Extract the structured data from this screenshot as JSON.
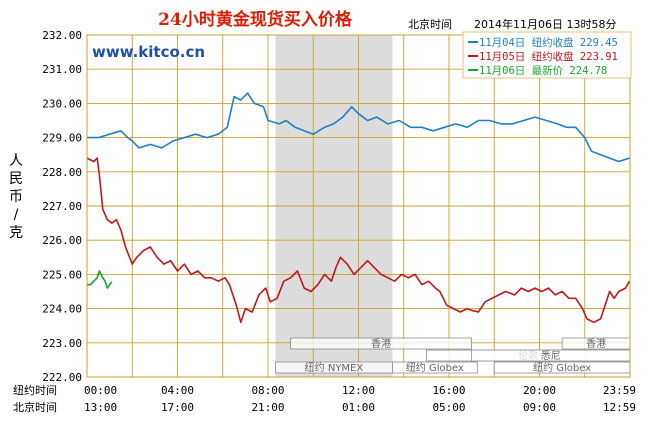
{
  "header": {
    "title": "24小时黄金现货买入价格",
    "beijing_label": "北京时间",
    "datetime": "2014年11月06日 13时58分",
    "brand": "www.kitco.cn",
    "ylabel": "人民币/克"
  },
  "legend": [
    {
      "text": "11月04日  纽约收盘 229.45",
      "color": "#1f7fc4"
    },
    {
      "text": "11月05日  纽约收盘 223.91",
      "color": "#c0171c"
    },
    {
      "text": "11月06日    最新价 224.78",
      "color": "#16a531"
    }
  ],
  "time_rows": {
    "ny_label": "纽约时间",
    "bj_label": "北京时间",
    "ny_ticks": [
      "00:00",
      "04:00",
      "08:00",
      "12:00",
      "16:00",
      "20:00",
      "23:59"
    ],
    "bj_ticks": [
      "13:00",
      "17:00",
      "21:00",
      "01:00",
      "05:00",
      "09:00",
      "12:59"
    ]
  },
  "markets": [
    {
      "name": "香港",
      "start": 9.0,
      "end": 17.0,
      "row": 0
    },
    {
      "name": "伦敦",
      "start": 15.0,
      "end": 24.0,
      "row": 1
    },
    {
      "name": "纽约 Globex",
      "start": 18.0,
      "end": 24.0,
      "row": 2
    },
    {
      "name": "纽约 NYMEX",
      "start": 8.33,
      "end": 13.5,
      "row": 2
    },
    {
      "name": "纽约 Globex",
      "start": 13.5,
      "end": 17.25,
      "row": 2
    },
    {
      "name": "香港",
      "start": 21.0,
      "end": 24.0,
      "row": 0
    },
    {
      "name": "悉尼",
      "start": 17.0,
      "end": 24.0,
      "row": 1
    }
  ],
  "colors": {
    "grid": "#c9a227",
    "blue": "#1f7fc4",
    "red": "#c0171c",
    "green": "#16a531",
    "shade": "#dcdcdc"
  },
  "chart_data": {
    "type": "line",
    "x_unit": "hours (New York time)",
    "xlim": [
      0,
      24
    ],
    "ylim": [
      222.0,
      232.0
    ],
    "yticks": [
      "222.00",
      "223.00",
      "224.00",
      "225.00",
      "226.00",
      "227.00",
      "228.00",
      "229.00",
      "230.00",
      "231.00",
      "232.00"
    ],
    "shaded_range": [
      8.33,
      13.5
    ],
    "series": [
      {
        "name": "11月04日",
        "color": "#1f7fc4",
        "points": [
          [
            0,
            229.0
          ],
          [
            0.5,
            229.0
          ],
          [
            1.0,
            229.1
          ],
          [
            1.5,
            229.2
          ],
          [
            1.8,
            229.0
          ],
          [
            2.0,
            228.9
          ],
          [
            2.3,
            228.7
          ],
          [
            2.8,
            228.8
          ],
          [
            3.3,
            228.7
          ],
          [
            3.8,
            228.9
          ],
          [
            4.3,
            229.0
          ],
          [
            4.8,
            229.1
          ],
          [
            5.3,
            229.0
          ],
          [
            5.8,
            229.1
          ],
          [
            6.2,
            229.3
          ],
          [
            6.5,
            230.2
          ],
          [
            6.8,
            230.1
          ],
          [
            7.1,
            230.3
          ],
          [
            7.4,
            230.0
          ],
          [
            7.8,
            229.9
          ],
          [
            8.0,
            229.5
          ],
          [
            8.5,
            229.4
          ],
          [
            8.8,
            229.5
          ],
          [
            9.2,
            229.3
          ],
          [
            9.6,
            229.2
          ],
          [
            10.0,
            229.1
          ],
          [
            10.5,
            229.3
          ],
          [
            10.9,
            229.4
          ],
          [
            11.3,
            229.6
          ],
          [
            11.7,
            229.9
          ],
          [
            12.0,
            229.7
          ],
          [
            12.4,
            229.5
          ],
          [
            12.8,
            229.6
          ],
          [
            13.3,
            229.4
          ],
          [
            13.8,
            229.5
          ],
          [
            14.3,
            229.3
          ],
          [
            14.8,
            229.3
          ],
          [
            15.3,
            229.2
          ],
          [
            15.8,
            229.3
          ],
          [
            16.3,
            229.4
          ],
          [
            16.8,
            229.3
          ],
          [
            17.3,
            229.5
          ],
          [
            17.8,
            229.5
          ],
          [
            18.3,
            229.4
          ],
          [
            18.8,
            229.4
          ],
          [
            19.3,
            229.5
          ],
          [
            19.8,
            229.6
          ],
          [
            20.3,
            229.5
          ],
          [
            20.8,
            229.4
          ],
          [
            21.2,
            229.3
          ],
          [
            21.6,
            229.3
          ],
          [
            22.0,
            229.0
          ],
          [
            22.3,
            228.6
          ],
          [
            22.7,
            228.5
          ],
          [
            23.1,
            228.4
          ],
          [
            23.5,
            228.3
          ],
          [
            23.98,
            228.4
          ]
        ]
      },
      {
        "name": "11月05日",
        "color": "#c0171c",
        "points": [
          [
            0,
            228.4
          ],
          [
            0.3,
            228.3
          ],
          [
            0.45,
            228.4
          ],
          [
            0.55,
            227.9
          ],
          [
            0.7,
            226.9
          ],
          [
            0.9,
            226.6
          ],
          [
            1.1,
            226.5
          ],
          [
            1.3,
            226.6
          ],
          [
            1.5,
            226.3
          ],
          [
            1.7,
            225.8
          ],
          [
            2.0,
            225.3
          ],
          [
            2.2,
            225.5
          ],
          [
            2.5,
            225.7
          ],
          [
            2.8,
            225.8
          ],
          [
            3.1,
            225.5
          ],
          [
            3.4,
            225.3
          ],
          [
            3.7,
            225.4
          ],
          [
            4.0,
            225.1
          ],
          [
            4.3,
            225.3
          ],
          [
            4.6,
            225.0
          ],
          [
            4.9,
            225.1
          ],
          [
            5.2,
            224.9
          ],
          [
            5.5,
            224.9
          ],
          [
            5.8,
            224.8
          ],
          [
            6.1,
            224.9
          ],
          [
            6.3,
            224.7
          ],
          [
            6.6,
            224.1
          ],
          [
            6.8,
            223.6
          ],
          [
            7.0,
            224.0
          ],
          [
            7.3,
            223.9
          ],
          [
            7.6,
            224.4
          ],
          [
            7.9,
            224.6
          ],
          [
            8.1,
            224.2
          ],
          [
            8.4,
            224.3
          ],
          [
            8.7,
            224.8
          ],
          [
            9.0,
            224.9
          ],
          [
            9.3,
            225.1
          ],
          [
            9.6,
            224.6
          ],
          [
            9.9,
            224.5
          ],
          [
            10.2,
            224.7
          ],
          [
            10.5,
            225.0
          ],
          [
            10.8,
            224.8
          ],
          [
            11.0,
            225.2
          ],
          [
            11.2,
            225.5
          ],
          [
            11.5,
            225.3
          ],
          [
            11.8,
            225.0
          ],
          [
            12.1,
            225.2
          ],
          [
            12.4,
            225.4
          ],
          [
            12.7,
            225.2
          ],
          [
            13.0,
            225.0
          ],
          [
            13.3,
            224.9
          ],
          [
            13.6,
            224.8
          ],
          [
            13.9,
            225.0
          ],
          [
            14.2,
            224.9
          ],
          [
            14.5,
            225.0
          ],
          [
            14.8,
            224.7
          ],
          [
            15.1,
            224.8
          ],
          [
            15.4,
            224.6
          ],
          [
            15.6,
            224.5
          ],
          [
            15.9,
            224.1
          ],
          [
            16.2,
            224.0
          ],
          [
            16.5,
            223.9
          ],
          [
            16.8,
            224.0
          ],
          [
            17.0,
            223.95
          ],
          [
            17.3,
            223.9
          ],
          [
            17.6,
            224.2
          ],
          [
            17.9,
            224.3
          ],
          [
            18.2,
            224.4
          ],
          [
            18.5,
            224.5
          ],
          [
            18.9,
            224.4
          ],
          [
            19.2,
            224.6
          ],
          [
            19.5,
            224.5
          ],
          [
            19.8,
            224.6
          ],
          [
            20.1,
            224.5
          ],
          [
            20.4,
            224.6
          ],
          [
            20.7,
            224.4
          ],
          [
            21.0,
            224.5
          ],
          [
            21.3,
            224.3
          ],
          [
            21.6,
            224.3
          ],
          [
            21.9,
            224.0
          ],
          [
            22.1,
            223.7
          ],
          [
            22.4,
            223.6
          ],
          [
            22.7,
            223.7
          ],
          [
            22.9,
            224.1
          ],
          [
            23.1,
            224.5
          ],
          [
            23.3,
            224.3
          ],
          [
            23.5,
            224.5
          ],
          [
            23.8,
            224.6
          ],
          [
            23.98,
            224.8
          ]
        ]
      },
      {
        "name": "11月06日",
        "color": "#16a531",
        "points": [
          [
            0,
            224.7
          ],
          [
            0.15,
            224.7
          ],
          [
            0.3,
            224.8
          ],
          [
            0.45,
            224.9
          ],
          [
            0.55,
            225.1
          ],
          [
            0.7,
            224.9
          ],
          [
            0.8,
            224.8
          ],
          [
            0.9,
            224.6
          ],
          [
            1.0,
            224.7
          ],
          [
            1.1,
            224.78
          ]
        ]
      }
    ]
  }
}
